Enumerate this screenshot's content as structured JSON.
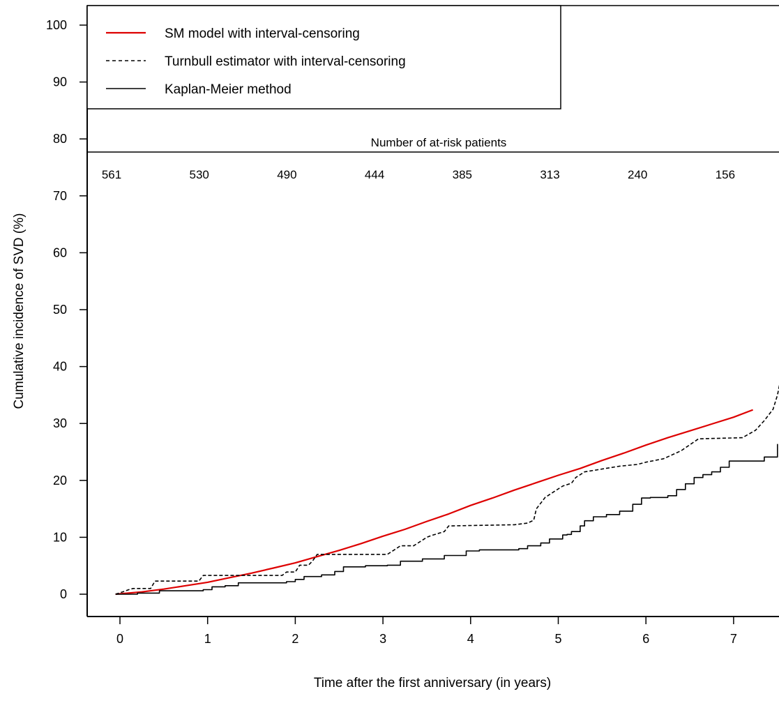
{
  "chart_data": {
    "type": "line",
    "xlabel": "Time after the first anniversary (in years)",
    "ylabel": "Cumulative incidence of SVD (%)",
    "xlim": [
      -0.38,
      7.55
    ],
    "ylim": [
      -4,
      104
    ],
    "x_ticks": [
      0,
      1,
      2,
      3,
      4,
      5,
      6,
      7
    ],
    "y_ticks": [
      0,
      10,
      20,
      30,
      40,
      50,
      60,
      70,
      80,
      90,
      100
    ],
    "grid": false,
    "legend_placement": "top-left",
    "series": [
      {
        "name": "SM model with interval-censoring",
        "color": "#dd0000",
        "style": "solid",
        "step": false,
        "x": [
          -0.05,
          0.25,
          0.5,
          0.75,
          1.0,
          1.25,
          1.5,
          1.75,
          2.0,
          2.25,
          2.5,
          2.75,
          3.0,
          3.25,
          3.5,
          3.75,
          4.0,
          4.25,
          4.5,
          4.75,
          5.0,
          5.25,
          5.5,
          5.75,
          6.0,
          6.25,
          6.5,
          6.75,
          7.0,
          7.22
        ],
        "y": [
          0,
          0.4,
          0.9,
          1.5,
          2.1,
          2.9,
          3.7,
          4.6,
          5.5,
          6.6,
          7.7,
          8.9,
          10.2,
          11.4,
          12.8,
          14.1,
          15.6,
          16.9,
          18.3,
          19.6,
          20.9,
          22.1,
          23.5,
          24.8,
          26.2,
          27.5,
          28.7,
          29.9,
          31.1,
          32.4
        ]
      },
      {
        "name": "Turnbull estimator with interval-censoring",
        "color": "#000000",
        "style": "dashed",
        "step": false,
        "x": [
          -0.05,
          0.05,
          0.1,
          0.15,
          0.35,
          0.4,
          0.9,
          0.95,
          1.85,
          1.9,
          2.0,
          2.05,
          2.15,
          2.2,
          2.25,
          3.05,
          3.1,
          3.15,
          3.2,
          3.35,
          3.5,
          3.55,
          3.7,
          3.75,
          4.5,
          4.65,
          4.72,
          4.75,
          4.85,
          4.95,
          5.05,
          5.15,
          5.2,
          5.3,
          5.7,
          5.9,
          6.0,
          6.2,
          6.4,
          6.6,
          7.1,
          7.25,
          7.35,
          7.45,
          7.5,
          7.55
        ],
        "y": [
          0,
          0.5,
          0.8,
          1.0,
          1.0,
          2.3,
          2.3,
          3.3,
          3.3,
          3.9,
          3.9,
          5.1,
          5.1,
          5.9,
          7.0,
          7.0,
          7.5,
          8.0,
          8.5,
          8.5,
          10.0,
          10.3,
          11.0,
          12.0,
          12.2,
          12.5,
          13.0,
          15.0,
          17.0,
          18.0,
          19.0,
          19.5,
          20.5,
          21.5,
          22.5,
          22.8,
          23.2,
          23.8,
          25.2,
          27.3,
          27.5,
          28.8,
          30.5,
          32.5,
          35.0,
          38.8
        ]
      },
      {
        "name": "Kaplan-Meier method",
        "color": "#000000",
        "style": "solid",
        "step": true,
        "x": [
          -0.05,
          0.2,
          0.45,
          0.95,
          1.05,
          1.2,
          1.35,
          1.9,
          2.0,
          2.1,
          2.3,
          2.45,
          2.55,
          2.8,
          3.05,
          3.2,
          3.45,
          3.7,
          3.95,
          4.1,
          4.55,
          4.65,
          4.8,
          4.9,
          5.05,
          5.1,
          5.15,
          5.25,
          5.3,
          5.4,
          5.55,
          5.7,
          5.85,
          5.95,
          6.05,
          6.25,
          6.35,
          6.45,
          6.55,
          6.65,
          6.75,
          6.85,
          6.95,
          7.35,
          7.5
        ],
        "y": [
          0,
          0.2,
          0.6,
          0.8,
          1.3,
          1.5,
          2.0,
          2.2,
          2.6,
          3.1,
          3.4,
          4.0,
          4.8,
          5.0,
          5.1,
          5.8,
          6.2,
          6.8,
          7.6,
          7.8,
          8.0,
          8.5,
          9.0,
          9.7,
          10.4,
          10.5,
          11.0,
          12.0,
          12.9,
          13.6,
          14.0,
          14.6,
          15.8,
          16.9,
          17.0,
          17.3,
          18.4,
          19.4,
          20.5,
          21.0,
          21.5,
          22.3,
          23.4,
          24.1,
          26.4
        ]
      }
    ],
    "at_risk": {
      "title": "Number of at-risk patients",
      "values": [
        "561",
        "530",
        "490",
        "444",
        "385",
        "313",
        "240",
        "156"
      ]
    }
  }
}
